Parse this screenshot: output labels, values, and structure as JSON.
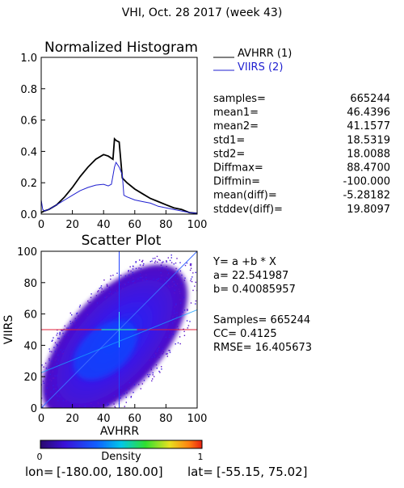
{
  "page_title": "VHI,  Oct. 28 2017 (week 43)",
  "histogram": {
    "title": "Normalized Histogram",
    "legend": [
      {
        "label": "AVHRR (1)",
        "color": "#000000"
      },
      {
        "label": "VIIRS (2)",
        "color": "#1f1fd0"
      }
    ],
    "stats": [
      {
        "label": "samples=",
        "value": "665244"
      },
      {
        "label": "mean1=",
        "value": "46.4396"
      },
      {
        "label": "mean2=",
        "value": "41.1577"
      },
      {
        "label": "std1=",
        "value": "18.5319"
      },
      {
        "label": "std2=",
        "value": "18.0088"
      },
      {
        "label": "Diffmax=",
        "value": "88.4700"
      },
      {
        "label": "Diffmin=",
        "value": "-100.000"
      },
      {
        "label": "mean(diff)=",
        "value": "-5.28182"
      },
      {
        "label": "stddev(diff)=",
        "value": "19.8097"
      }
    ]
  },
  "scatter": {
    "title": "Scatter Plot",
    "equation": "Y= a +b * X",
    "a_text": "a= 22.541987",
    "b_text": "b= 0.40085957",
    "samples_text": "Samples= 665244",
    "cc_text": "CC=  0.4125",
    "rmse_text": "RMSE= 16.405673",
    "colorbar": {
      "label": "Density",
      "min_label": "0",
      "max_label": "1"
    }
  },
  "footer": {
    "lon_label": "lon=",
    "lon_value": "[-180.00, 180.00]",
    "lat_label": "lat=",
    "lat_value": "[-55.15, 75.02]"
  },
  "chart_data": [
    {
      "type": "line",
      "title": "Normalized Histogram",
      "xlim": [
        0,
        100
      ],
      "ylim": [
        0,
        1
      ],
      "x_ticks": [
        0,
        20,
        40,
        60,
        80,
        100
      ],
      "y_ticks": [
        "0.0",
        "0.2",
        "0.4",
        "0.6",
        "0.8",
        "1.0"
      ],
      "series": [
        {
          "name": "AVHRR (1)",
          "color": "#000000",
          "x": [
            0,
            2,
            5,
            10,
            15,
            20,
            25,
            30,
            35,
            40,
            43,
            46,
            47,
            48,
            50,
            52,
            55,
            60,
            65,
            70,
            75,
            80,
            85,
            90,
            95,
            100
          ],
          "y": [
            0.01,
            0.02,
            0.03,
            0.06,
            0.11,
            0.17,
            0.24,
            0.3,
            0.35,
            0.38,
            0.37,
            0.35,
            0.48,
            0.47,
            0.46,
            0.23,
            0.2,
            0.16,
            0.13,
            0.1,
            0.08,
            0.06,
            0.04,
            0.03,
            0.01,
            0.005
          ]
        },
        {
          "name": "VIIRS (2)",
          "color": "#1f1fd0",
          "x": [
            0,
            1,
            2,
            5,
            10,
            15,
            20,
            25,
            30,
            35,
            40,
            43,
            45,
            47,
            48,
            50,
            52,
            53,
            55,
            60,
            65,
            70,
            75,
            80,
            85,
            90,
            95,
            100
          ],
          "y": [
            0.09,
            0.03,
            0.02,
            0.03,
            0.06,
            0.09,
            0.12,
            0.15,
            0.17,
            0.185,
            0.19,
            0.18,
            0.19,
            0.3,
            0.33,
            0.3,
            0.25,
            0.12,
            0.11,
            0.09,
            0.08,
            0.07,
            0.05,
            0.04,
            0.03,
            0.02,
            0.01,
            0.005
          ]
        }
      ]
    },
    {
      "type": "scatter",
      "title": "Scatter Plot",
      "xlabel": "AVHRR",
      "ylabel": "VIIRS",
      "xlim": [
        0,
        100
      ],
      "ylim": [
        0,
        100
      ],
      "x_ticks": [
        0,
        20,
        40,
        60,
        80,
        100
      ],
      "y_ticks": [
        0,
        20,
        40,
        60,
        80,
        100
      ],
      "crosshair": {
        "x": 50,
        "y": 50
      },
      "regression": {
        "a": 22.541987,
        "b": 0.40085957
      },
      "density_center": {
        "x": 42,
        "y": 38
      },
      "n_samples": 665244
    }
  ]
}
